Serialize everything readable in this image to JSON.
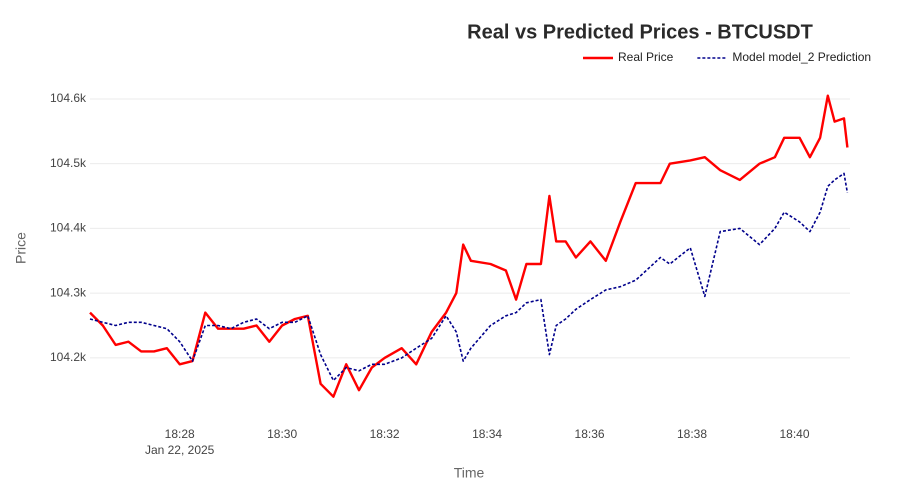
{
  "chart_data": {
    "type": "line",
    "title": "Real vs Predicted Prices - BTCUSDT",
    "x_label": "Time",
    "y_label": "Price",
    "x_sublabel": "Jan 22, 2025",
    "x": [
      "18:26:15",
      "18:26:30",
      "18:26:45",
      "18:27:00",
      "18:27:15",
      "18:27:30",
      "18:27:45",
      "18:28:00",
      "18:28:15",
      "18:28:30",
      "18:28:45",
      "18:29:00",
      "18:29:15",
      "18:29:30",
      "18:29:45",
      "18:30:00",
      "18:30:15",
      "18:30:30",
      "18:30:45",
      "18:31:00",
      "18:31:15",
      "18:31:30",
      "18:31:45",
      "18:32:00",
      "18:32:20",
      "18:32:37",
      "18:32:55",
      "18:33:12",
      "18:33:24",
      "18:33:32",
      "18:33:41",
      "18:34:04",
      "18:34:22",
      "18:34:34",
      "18:34:46",
      "18:35:03",
      "18:35:13",
      "18:35:21",
      "18:35:32",
      "18:35:44",
      "18:36:01",
      "18:36:19",
      "18:36:36",
      "18:36:54",
      "18:37:23",
      "18:37:34",
      "18:37:58",
      "18:38:15",
      "18:38:33",
      "18:38:56",
      "18:39:19",
      "18:39:37",
      "18:39:48",
      "18:40:06",
      "18:40:18",
      "18:40:30",
      "18:40:39",
      "18:40:47",
      "18:40:58",
      "18:41:02"
    ],
    "series": [
      {
        "name": "Real Price",
        "color": "#ff0000",
        "dash": false,
        "values": [
          104270,
          104250,
          104220,
          104225,
          104210,
          104210,
          104215,
          104190,
          104195,
          104270,
          104245,
          104245,
          104245,
          104250,
          104225,
          104250,
          104260,
          104265,
          104160,
          104140,
          104190,
          104150,
          104185,
          104200,
          104215,
          104190,
          104240,
          104270,
          104300,
          104375,
          104350,
          104345,
          104335,
          104290,
          104345,
          104345,
          104450,
          104380,
          104380,
          104355,
          104380,
          104350,
          104410,
          104470,
          104470,
          104500,
          104505,
          104510,
          104490,
          104475,
          104500,
          104510,
          104540,
          104540,
          104510,
          104540,
          104605,
          104565,
          104570,
          104525
        ]
      },
      {
        "name": "Model model_2 Prediction",
        "color": "#00008b",
        "dash": true,
        "values": [
          104260,
          104255,
          104250,
          104255,
          104255,
          104250,
          104245,
          104225,
          104195,
          104250,
          104250,
          104245,
          104255,
          104260,
          104245,
          104255,
          104255,
          104265,
          104205,
          104165,
          104185,
          104180,
          104190,
          104190,
          104200,
          104215,
          104230,
          104265,
          104240,
          104195,
          104215,
          104250,
          104265,
          104270,
          104285,
          104290,
          104205,
          104250,
          104260,
          104275,
          104290,
          104305,
          104310,
          104320,
          104355,
          104345,
          104370,
          104295,
          104395,
          104400,
          104375,
          104400,
          104425,
          104410,
          104395,
          104425,
          104465,
          104475,
          104485,
          104455
        ]
      }
    ],
    "xlim": [
      "18:26:15",
      "18:41:05"
    ],
    "xticks": [
      "18:28",
      "18:30",
      "18:32",
      "18:34",
      "18:36",
      "18:38",
      "18:40"
    ],
    "ylim": [
      104104,
      104637
    ],
    "yticks": [
      {
        "value": 104200,
        "label": "104.2k"
      },
      {
        "value": 104300,
        "label": "104.3k"
      },
      {
        "value": 104400,
        "label": "104.4k"
      },
      {
        "value": 104500,
        "label": "104.5k"
      },
      {
        "value": 104600,
        "label": "104.6k"
      }
    ],
    "grid": true,
    "legend": "top-right"
  }
}
